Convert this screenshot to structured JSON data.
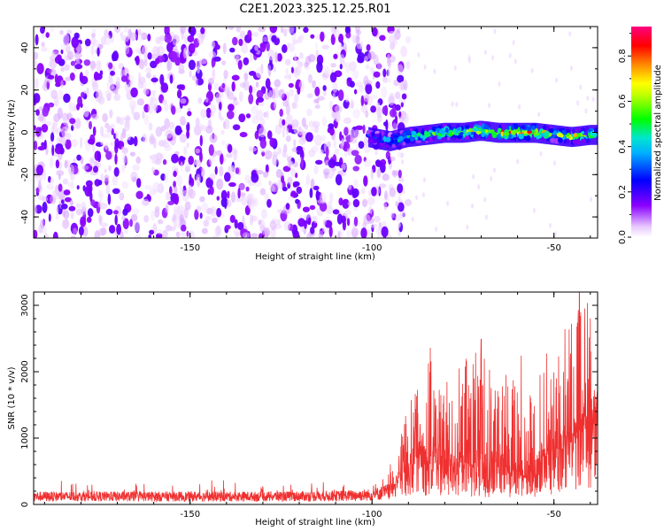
{
  "figure_title": "C2E1.2023.325.12.25.R01",
  "chart_data": [
    {
      "type": "heatmap",
      "title": "",
      "xlabel": "Height of straight line (km)",
      "ylabel": "Frequency (Hz)",
      "xlim": [
        -193,
        -38
      ],
      "ylim": [
        -50,
        50
      ],
      "x_ticks": [
        -150,
        -100,
        -50
      ],
      "y_ticks": [
        -40,
        -20,
        0,
        20,
        40
      ],
      "grid": false,
      "colorbar": {
        "label": "Normalized spectral amplitude",
        "range": [
          0,
          0.93
        ],
        "ticks": [
          0.0,
          0.2,
          0.4,
          0.6,
          0.8
        ],
        "colors": [
          "#ffffff",
          "#8a00ff",
          "#0000ff",
          "#00e5ff",
          "#00ff00",
          "#ffff00",
          "#ff8800",
          "#ff0000",
          "#ff0080"
        ]
      },
      "noise_region": {
        "x": [
          -193,
          -93
        ],
        "freq": [
          -50,
          50
        ],
        "amplitude": 0.15
      },
      "signal_track": [
        {
          "x": -101,
          "freq": -2,
          "amplitude": 0.35
        },
        {
          "x": -98,
          "freq": -3,
          "amplitude": 0.4
        },
        {
          "x": -95,
          "freq": -4,
          "amplitude": 0.45
        },
        {
          "x": -90,
          "freq": -2,
          "amplitude": 0.55
        },
        {
          "x": -85,
          "freq": -1,
          "amplitude": 0.65
        },
        {
          "x": -80,
          "freq": 0,
          "amplitude": 0.7
        },
        {
          "x": -75,
          "freq": 0,
          "amplitude": 0.75
        },
        {
          "x": -70,
          "freq": 1,
          "amplitude": 0.8
        },
        {
          "x": -65,
          "freq": 0,
          "amplitude": 0.85
        },
        {
          "x": -60,
          "freq": 0,
          "amplitude": 0.9
        },
        {
          "x": -55,
          "freq": 0,
          "amplitude": 0.85
        },
        {
          "x": -50,
          "freq": -1,
          "amplitude": 0.7
        },
        {
          "x": -45,
          "freq": -2,
          "amplitude": 0.8
        },
        {
          "x": -40,
          "freq": -1,
          "amplitude": 0.75
        }
      ]
    },
    {
      "type": "line",
      "title": "",
      "xlabel": "Height of straight line (km)",
      "ylabel": "SNR (10 * v/v)",
      "xlim": [
        -193,
        -38
      ],
      "ylim": [
        0,
        3200
      ],
      "x_ticks": [
        -150,
        -100,
        -50
      ],
      "y_ticks": [
        0,
        1000,
        2000,
        3000
      ],
      "grid": false,
      "series_color": "#f03030",
      "envelope": {
        "x": [
          -193,
          -180,
          -170,
          -160,
          -150,
          -140,
          -130,
          -120,
          -110,
          -100,
          -95,
          -90,
          -88,
          -85,
          -82,
          -80,
          -75,
          -70,
          -65,
          -60,
          -58,
          -55,
          -52,
          -50,
          -48,
          -45,
          -42,
          -40,
          -38
        ],
        "baseline": [
          150,
          150,
          150,
          150,
          150,
          150,
          150,
          155,
          160,
          180,
          250,
          500,
          700,
          650,
          600,
          600,
          550,
          550,
          550,
          450,
          400,
          550,
          650,
          700,
          800,
          900,
          1100,
          1200,
          1200
        ],
        "peak": [
          300,
          330,
          320,
          300,
          320,
          350,
          330,
          320,
          340,
          380,
          600,
          1600,
          1800,
          2350,
          1900,
          1800,
          2200,
          2500,
          2100,
          1900,
          1500,
          2000,
          2300,
          2500,
          2700,
          2900,
          3100,
          3200,
          3000
        ]
      },
      "notable_peaks": [
        {
          "x": -84,
          "y": 2360
        },
        {
          "x": -70,
          "y": 2490
        },
        {
          "x": -59,
          "y": 2240
        },
        {
          "x": -47,
          "y": 2640
        },
        {
          "x": -43,
          "y": 3200
        }
      ]
    }
  ]
}
